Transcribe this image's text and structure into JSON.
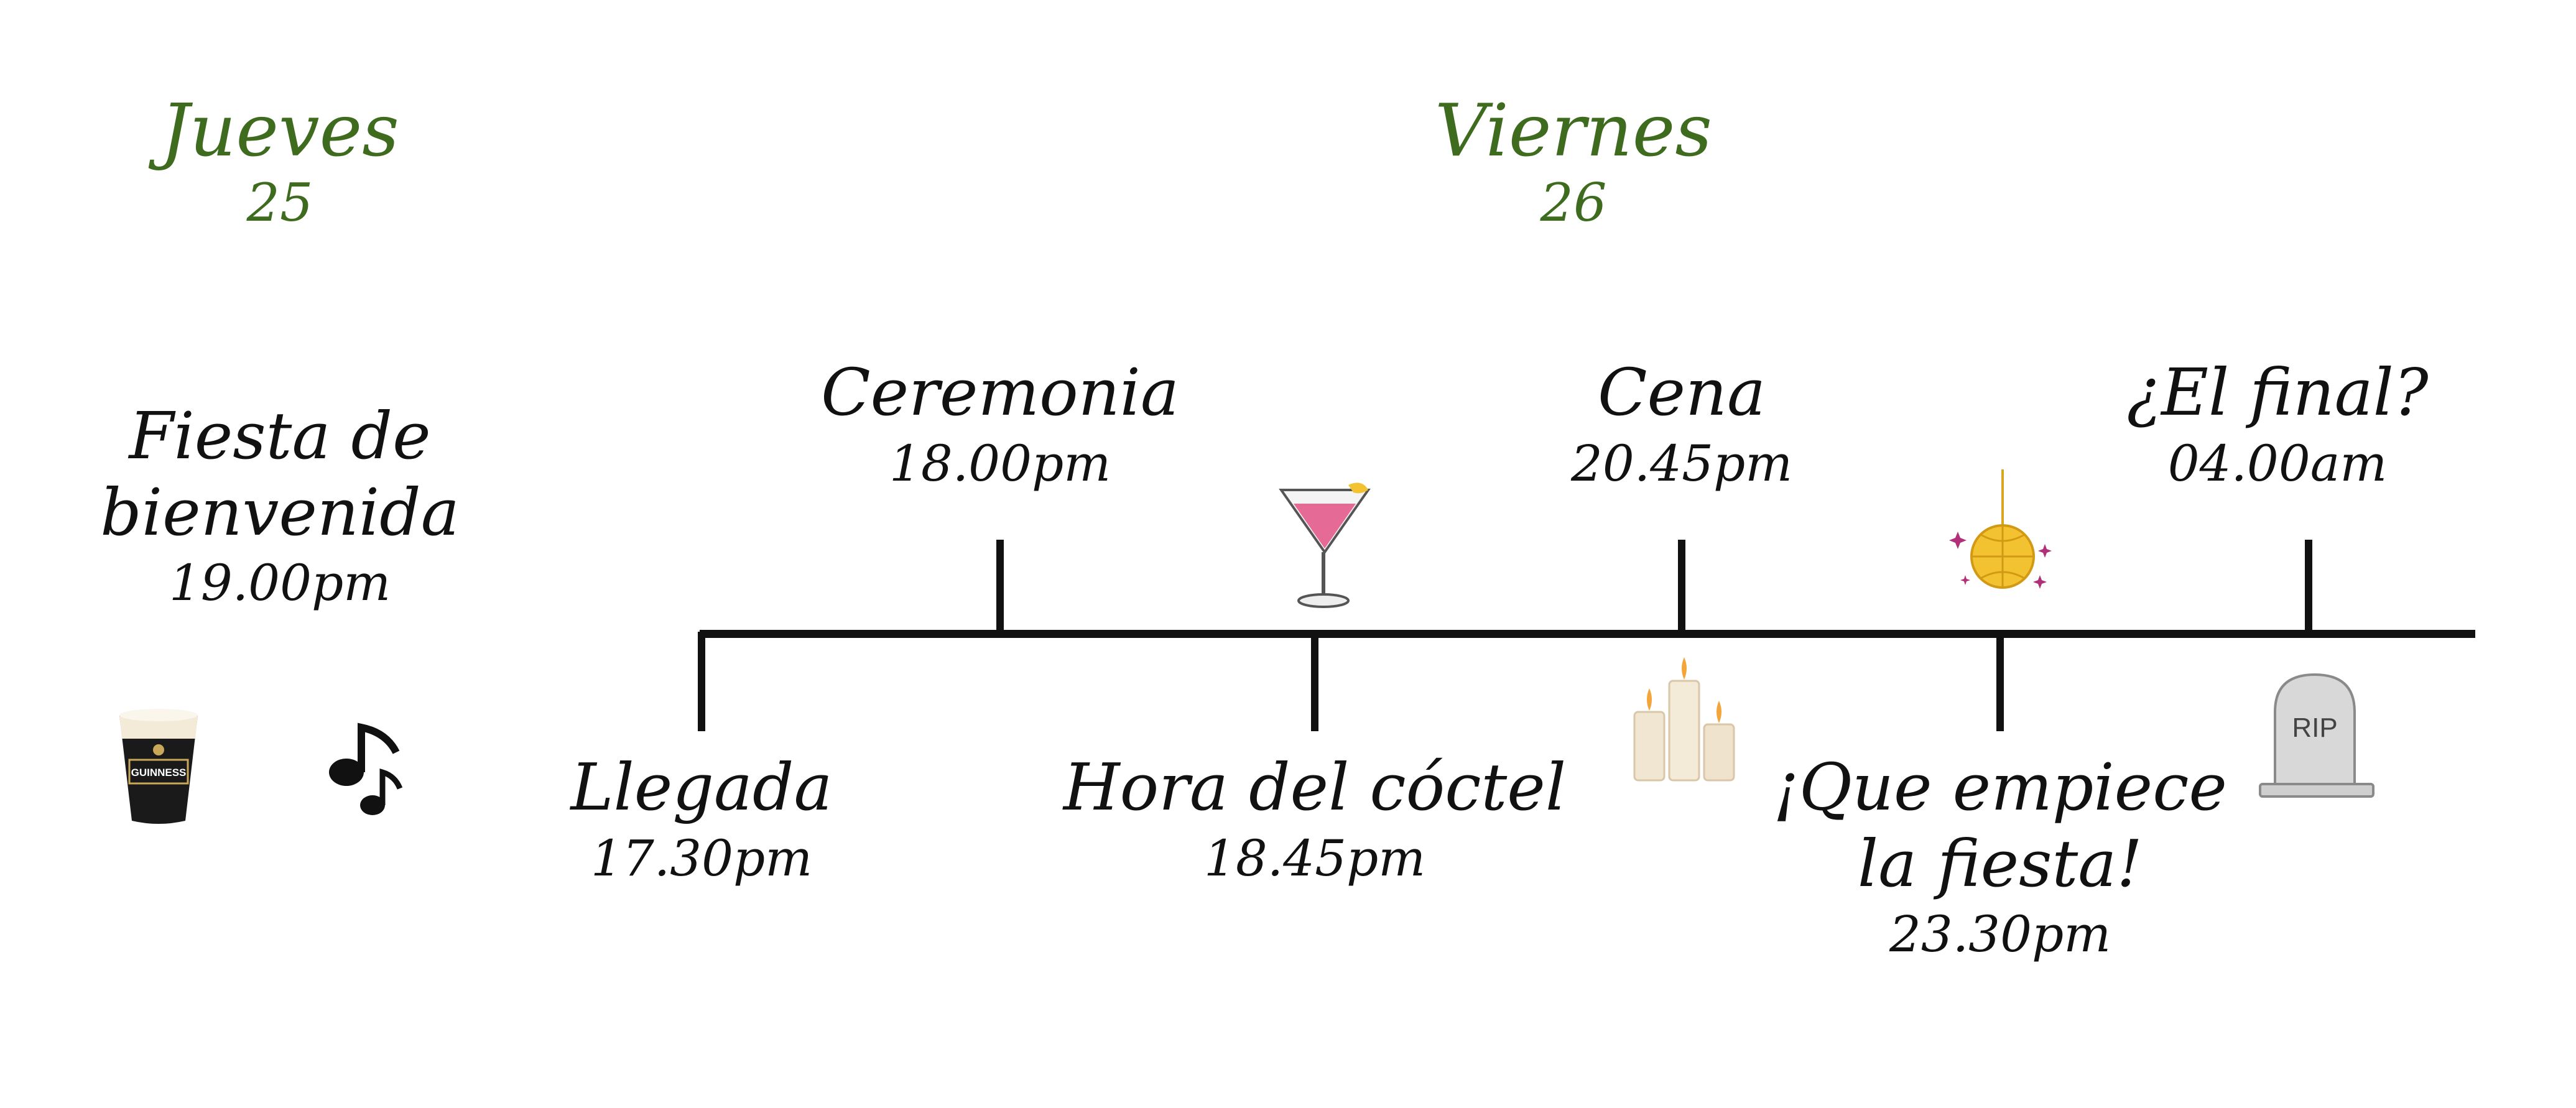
{
  "days": [
    {
      "name": "Jueves",
      "number": "25"
    },
    {
      "name": "Viernes",
      "number": "26"
    }
  ],
  "events": {
    "welcome": {
      "title_line1": "Fiesta de",
      "title_line2": "bienvenida",
      "time": "19.00pm"
    },
    "arrival": {
      "title": "Llegada",
      "time": "17.30pm"
    },
    "ceremony": {
      "title": "Ceremonia",
      "time": "18.00pm"
    },
    "cocktail": {
      "title": "Hora del cóctel",
      "time": "18.45pm"
    },
    "dinner": {
      "title": "Cena",
      "time": "20.45pm"
    },
    "party": {
      "title_line1": "¡Que empiece",
      "title_line2": "la fiesta!",
      "time": "23.30pm"
    },
    "end": {
      "title": "¿El final?",
      "time": "04.00am"
    }
  },
  "icons": {
    "beer": {
      "name": "beer-glass-icon",
      "label": "GUINNESS"
    },
    "music": {
      "name": "music-note-icon"
    },
    "cocktail": {
      "name": "cocktail-glass-icon"
    },
    "candles": {
      "name": "candles-icon"
    },
    "disco": {
      "name": "disco-ball-icon"
    },
    "tombstone": {
      "name": "tombstone-icon",
      "label": "RIP"
    }
  },
  "colors": {
    "day_text": "#3f6b1f",
    "event_text": "#111111",
    "line": "#111111",
    "cocktail_pink": "#e56a96",
    "disco_gold": "#f2c230",
    "sparkle": "#b0307a"
  }
}
